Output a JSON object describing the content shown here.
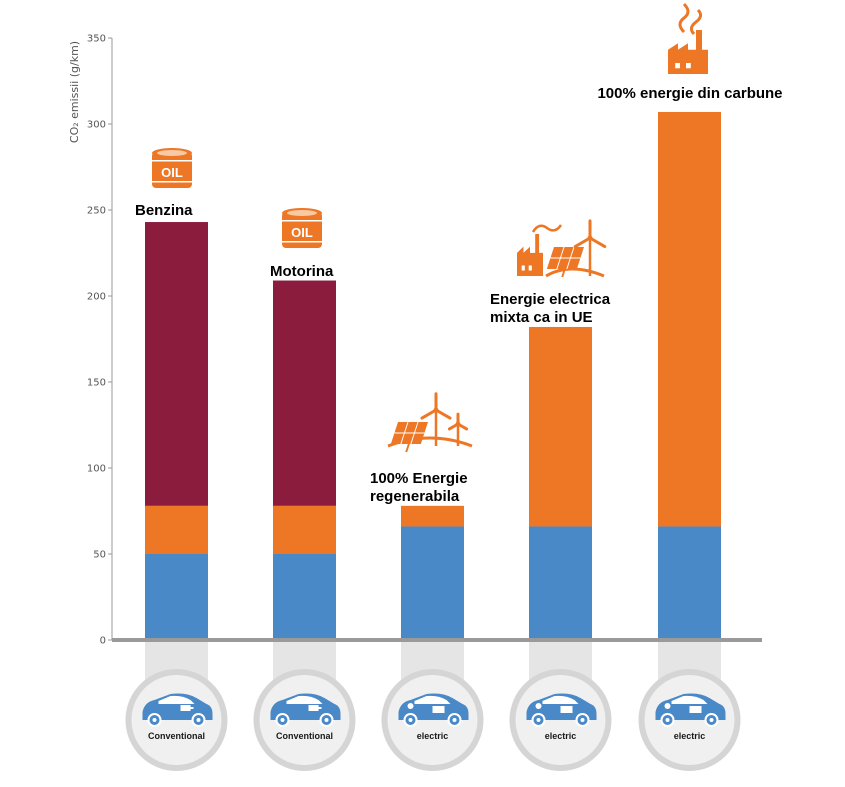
{
  "colors": {
    "blue": "#4a89c8",
    "orange": "#ed7724",
    "maroon": "#8b1c3e",
    "axis": "#9a9a9a",
    "pillar": "#e5e5e5",
    "circle_fill": "#f0f0f0",
    "circle_ring": "#d5d5d5",
    "car": "#4a89c8"
  },
  "chart_data": {
    "type": "bar",
    "stacked": true,
    "ylabel": "CO₂ emissii (g/km)",
    "ylim": [
      0,
      350
    ],
    "yticks": [
      0,
      50,
      100,
      150,
      200,
      250,
      300,
      350
    ],
    "grid": false,
    "legend": "none",
    "categories": [
      "Conventional",
      "Conventional",
      "electric",
      "electric",
      "electric"
    ],
    "bar_labels": [
      [
        "Benzina"
      ],
      [
        "Motorina"
      ],
      [
        "100% Energie",
        "regenerabila"
      ],
      [
        "Energie electrica",
        "mixta ca in UE"
      ],
      [
        "100% energie din carbune"
      ]
    ],
    "icons": [
      "oil-barrel-icon",
      "oil-barrel-icon",
      "solar-wind-icon",
      "factory-solar-wind-icon",
      "factory-smoke-icon"
    ],
    "icon_text": "OIL",
    "series": [
      {
        "color": "#4a89c8",
        "values": [
          50,
          50,
          66,
          66,
          66
        ]
      },
      {
        "color": "#ed7724",
        "values": [
          28,
          28,
          12,
          116,
          241
        ]
      },
      {
        "color": "#8b1c3e",
        "values": [
          165,
          131,
          0,
          0,
          0
        ]
      }
    ]
  }
}
